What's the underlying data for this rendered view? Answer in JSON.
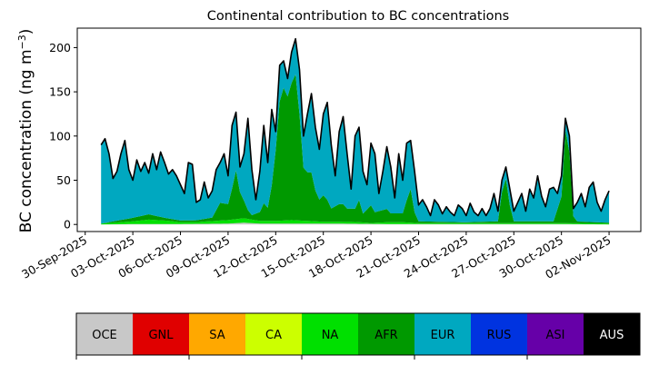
{
  "chart_data": {
    "type": "area",
    "stacked": true,
    "title": "Continental contribution to BC concentrations",
    "ylabel": "BC concentration (ng m",
    "ylabel_sup": "−3",
    "ylabel_close": ")",
    "xlabel": "",
    "ylim": [
      -8,
      222
    ],
    "xlim": [
      "2025-09-29T12:00",
      "2025-11-04T00:00"
    ],
    "yticks": [
      0,
      50,
      100,
      150,
      200
    ],
    "xticks": [
      "30-Sep-2025",
      "03-Oct-2025",
      "06-Oct-2025",
      "09-Oct-2025",
      "12-Oct-2025",
      "15-Oct-2025",
      "18-Oct-2025",
      "21-Oct-2025",
      "24-Oct-2025",
      "27-Oct-2025",
      "30-Oct-2025",
      "02-Nov-2025"
    ],
    "grid": false,
    "total_line_color": "#000000",
    "total_points": [
      [
        "2025-10-01T00:00",
        90
      ],
      [
        "2025-10-01T06:00",
        97
      ],
      [
        "2025-10-01T12:00",
        80
      ],
      [
        "2025-10-01T18:00",
        52
      ],
      [
        "2025-10-02T00:00",
        60
      ],
      [
        "2025-10-02T06:00",
        80
      ],
      [
        "2025-10-02T12:00",
        95
      ],
      [
        "2025-10-02T18:00",
        62
      ],
      [
        "2025-10-03T00:00",
        50
      ],
      [
        "2025-10-03T06:00",
        73
      ],
      [
        "2025-10-03T12:00",
        60
      ],
      [
        "2025-10-03T18:00",
        70
      ],
      [
        "2025-10-04T00:00",
        58
      ],
      [
        "2025-10-04T06:00",
        80
      ],
      [
        "2025-10-04T12:00",
        62
      ],
      [
        "2025-10-04T18:00",
        82
      ],
      [
        "2025-10-05T00:00",
        70
      ],
      [
        "2025-10-05T06:00",
        57
      ],
      [
        "2025-10-05T12:00",
        62
      ],
      [
        "2025-10-05T18:00",
        55
      ],
      [
        "2025-10-06T00:00",
        45
      ],
      [
        "2025-10-06T06:00",
        35
      ],
      [
        "2025-10-06T12:00",
        70
      ],
      [
        "2025-10-06T18:00",
        68
      ],
      [
        "2025-10-07T00:00",
        25
      ],
      [
        "2025-10-07T06:00",
        28
      ],
      [
        "2025-10-07T12:00",
        48
      ],
      [
        "2025-10-07T18:00",
        30
      ],
      [
        "2025-10-08T00:00",
        38
      ],
      [
        "2025-10-08T06:00",
        62
      ],
      [
        "2025-10-08T12:00",
        70
      ],
      [
        "2025-10-08T18:00",
        80
      ],
      [
        "2025-10-09T00:00",
        55
      ],
      [
        "2025-10-09T06:00",
        112
      ],
      [
        "2025-10-09T12:00",
        127
      ],
      [
        "2025-10-09T18:00",
        65
      ],
      [
        "2025-10-10T00:00",
        80
      ],
      [
        "2025-10-10T06:00",
        120
      ],
      [
        "2025-10-10T12:00",
        62
      ],
      [
        "2025-10-10T18:00",
        28
      ],
      [
        "2025-10-11T00:00",
        60
      ],
      [
        "2025-10-11T06:00",
        112
      ],
      [
        "2025-10-11T12:00",
        70
      ],
      [
        "2025-10-11T18:00",
        130
      ],
      [
        "2025-10-12T00:00",
        105
      ],
      [
        "2025-10-12T06:00",
        180
      ],
      [
        "2025-10-12T12:00",
        185
      ],
      [
        "2025-10-12T18:00",
        165
      ],
      [
        "2025-10-13T00:00",
        195
      ],
      [
        "2025-10-13T06:00",
        210
      ],
      [
        "2025-10-13T12:00",
        175
      ],
      [
        "2025-10-13T18:00",
        100
      ],
      [
        "2025-10-14T00:00",
        125
      ],
      [
        "2025-10-14T06:00",
        148
      ],
      [
        "2025-10-14T12:00",
        110
      ],
      [
        "2025-10-14T18:00",
        85
      ],
      [
        "2025-10-15T00:00",
        125
      ],
      [
        "2025-10-15T06:00",
        138
      ],
      [
        "2025-10-15T12:00",
        90
      ],
      [
        "2025-10-15T18:00",
        55
      ],
      [
        "2025-10-16T00:00",
        105
      ],
      [
        "2025-10-16T06:00",
        122
      ],
      [
        "2025-10-16T12:00",
        80
      ],
      [
        "2025-10-16T18:00",
        40
      ],
      [
        "2025-10-17T00:00",
        100
      ],
      [
        "2025-10-17T06:00",
        110
      ],
      [
        "2025-10-17T12:00",
        60
      ],
      [
        "2025-10-17T18:00",
        45
      ],
      [
        "2025-10-18T00:00",
        92
      ],
      [
        "2025-10-18T06:00",
        80
      ],
      [
        "2025-10-18T12:00",
        35
      ],
      [
        "2025-10-18T18:00",
        60
      ],
      [
        "2025-10-19T00:00",
        88
      ],
      [
        "2025-10-19T06:00",
        65
      ],
      [
        "2025-10-19T12:00",
        30
      ],
      [
        "2025-10-19T18:00",
        80
      ],
      [
        "2025-10-20T00:00",
        50
      ],
      [
        "2025-10-20T06:00",
        92
      ],
      [
        "2025-10-20T12:00",
        95
      ],
      [
        "2025-10-20T18:00",
        60
      ],
      [
        "2025-10-21T00:00",
        22
      ],
      [
        "2025-10-21T06:00",
        28
      ],
      [
        "2025-10-21T12:00",
        20
      ],
      [
        "2025-10-21T18:00",
        10
      ],
      [
        "2025-10-22T00:00",
        28
      ],
      [
        "2025-10-22T06:00",
        22
      ],
      [
        "2025-10-22T12:00",
        12
      ],
      [
        "2025-10-22T18:00",
        20
      ],
      [
        "2025-10-23T00:00",
        14
      ],
      [
        "2025-10-23T06:00",
        10
      ],
      [
        "2025-10-23T12:00",
        22
      ],
      [
        "2025-10-23T18:00",
        18
      ],
      [
        "2025-10-24T00:00",
        10
      ],
      [
        "2025-10-24T06:00",
        24
      ],
      [
        "2025-10-24T12:00",
        14
      ],
      [
        "2025-10-24T18:00",
        10
      ],
      [
        "2025-10-25T00:00",
        18
      ],
      [
        "2025-10-25T06:00",
        10
      ],
      [
        "2025-10-25T12:00",
        18
      ],
      [
        "2025-10-25T18:00",
        35
      ],
      [
        "2025-10-26T00:00",
        15
      ],
      [
        "2025-10-26T06:00",
        50
      ],
      [
        "2025-10-26T12:00",
        65
      ],
      [
        "2025-10-26T18:00",
        40
      ],
      [
        "2025-10-27T00:00",
        15
      ],
      [
        "2025-10-27T06:00",
        25
      ],
      [
        "2025-10-27T12:00",
        35
      ],
      [
        "2025-10-27T18:00",
        15
      ],
      [
        "2025-10-28T00:00",
        40
      ],
      [
        "2025-10-28T06:00",
        30
      ],
      [
        "2025-10-28T12:00",
        55
      ],
      [
        "2025-10-28T18:00",
        32
      ],
      [
        "2025-10-29T00:00",
        20
      ],
      [
        "2025-10-29T06:00",
        40
      ],
      [
        "2025-10-29T12:00",
        42
      ],
      [
        "2025-10-29T18:00",
        35
      ],
      [
        "2025-10-30T00:00",
        55
      ],
      [
        "2025-10-30T06:00",
        120
      ],
      [
        "2025-10-30T12:00",
        100
      ],
      [
        "2025-10-30T18:00",
        18
      ],
      [
        "2025-10-31T00:00",
        25
      ],
      [
        "2025-10-31T06:00",
        35
      ],
      [
        "2025-10-31T12:00",
        20
      ],
      [
        "2025-10-31T18:00",
        42
      ],
      [
        "2025-11-01T00:00",
        48
      ],
      [
        "2025-11-01T06:00",
        25
      ],
      [
        "2025-11-01T12:00",
        15
      ],
      [
        "2025-11-01T18:00",
        28
      ],
      [
        "2025-11-02T00:00",
        38
      ]
    ],
    "series": [
      {
        "name": "OCE",
        "color": "#c8c8c8",
        "values": [
          [
            "2025-10-01T00:00",
            0
          ],
          [
            "2025-10-03T00:00",
            0.5
          ],
          [
            "2025-10-06T00:00",
            0.5
          ],
          [
            "2025-10-09T00:00",
            1
          ],
          [
            "2025-10-10T00:00",
            2
          ],
          [
            "2025-10-11T00:00",
            1
          ],
          [
            "2025-10-13T00:00",
            1
          ],
          [
            "2025-10-16T00:00",
            1
          ],
          [
            "2025-10-19T00:00",
            0.5
          ],
          [
            "2025-10-22T00:00",
            0.5
          ],
          [
            "2025-10-26T00:00",
            0.5
          ],
          [
            "2025-10-30T00:00",
            0.5
          ],
          [
            "2025-11-02T00:00",
            0
          ]
        ]
      },
      {
        "name": "NA",
        "color": "#00e000",
        "values": [
          [
            "2025-10-01T00:00",
            1
          ],
          [
            "2025-10-02T00:00",
            2
          ],
          [
            "2025-10-03T00:00",
            3
          ],
          [
            "2025-10-04T00:00",
            5
          ],
          [
            "2025-10-05T00:00",
            4
          ],
          [
            "2025-10-06T00:00",
            2
          ],
          [
            "2025-10-07T00:00",
            2
          ],
          [
            "2025-10-08T00:00",
            3
          ],
          [
            "2025-10-09T00:00",
            4
          ],
          [
            "2025-10-10T00:00",
            5
          ],
          [
            "2025-10-11T00:00",
            3
          ],
          [
            "2025-10-12T00:00",
            3
          ],
          [
            "2025-10-13T00:00",
            4
          ],
          [
            "2025-10-14T00:00",
            3
          ],
          [
            "2025-10-15T00:00",
            2
          ],
          [
            "2025-10-16T00:00",
            2
          ],
          [
            "2025-10-17T00:00",
            2
          ],
          [
            "2025-10-18T00:00",
            1
          ],
          [
            "2025-10-19T00:00",
            2
          ],
          [
            "2025-10-20T00:00",
            2
          ],
          [
            "2025-10-21T00:00",
            1
          ],
          [
            "2025-10-24T00:00",
            1
          ],
          [
            "2025-10-27T00:00",
            1
          ],
          [
            "2025-10-30T00:00",
            1
          ],
          [
            "2025-11-02T00:00",
            1
          ]
        ]
      },
      {
        "name": "AFR",
        "color": "#009900",
        "values": [
          [
            "2025-10-01T00:00",
            0
          ],
          [
            "2025-10-02T00:00",
            2
          ],
          [
            "2025-10-03T00:00",
            4
          ],
          [
            "2025-10-04T00:00",
            6
          ],
          [
            "2025-10-05T00:00",
            3
          ],
          [
            "2025-10-06T00:00",
            2
          ],
          [
            "2025-10-07T00:00",
            2
          ],
          [
            "2025-10-08T00:00",
            4
          ],
          [
            "2025-10-08T12:00",
            20
          ],
          [
            "2025-10-09T00:00",
            18
          ],
          [
            "2025-10-09T06:00",
            35
          ],
          [
            "2025-10-09T12:00",
            55
          ],
          [
            "2025-10-09T18:00",
            30
          ],
          [
            "2025-10-10T00:00",
            20
          ],
          [
            "2025-10-10T06:00",
            10
          ],
          [
            "2025-10-10T12:00",
            5
          ],
          [
            "2025-10-11T00:00",
            10
          ],
          [
            "2025-10-11T06:00",
            20
          ],
          [
            "2025-10-11T12:00",
            15
          ],
          [
            "2025-10-11T18:00",
            40
          ],
          [
            "2025-10-12T00:00",
            80
          ],
          [
            "2025-10-12T06:00",
            135
          ],
          [
            "2025-10-12T12:00",
            150
          ],
          [
            "2025-10-12T18:00",
            140
          ],
          [
            "2025-10-13T00:00",
            155
          ],
          [
            "2025-10-13T06:00",
            165
          ],
          [
            "2025-10-13T12:00",
            120
          ],
          [
            "2025-10-13T18:00",
            60
          ],
          [
            "2025-10-14T00:00",
            55
          ],
          [
            "2025-10-14T06:00",
            55
          ],
          [
            "2025-10-14T12:00",
            35
          ],
          [
            "2025-10-14T18:00",
            25
          ],
          [
            "2025-10-15T00:00",
            30
          ],
          [
            "2025-10-15T06:00",
            25
          ],
          [
            "2025-10-15T12:00",
            15
          ],
          [
            "2025-10-16T00:00",
            20
          ],
          [
            "2025-10-16T06:00",
            20
          ],
          [
            "2025-10-16T12:00",
            15
          ],
          [
            "2025-10-17T00:00",
            15
          ],
          [
            "2025-10-17T06:00",
            25
          ],
          [
            "2025-10-17T12:00",
            10
          ],
          [
            "2025-10-18T00:00",
            20
          ],
          [
            "2025-10-18T06:00",
            12
          ],
          [
            "2025-10-19T00:00",
            15
          ],
          [
            "2025-10-19T06:00",
            10
          ],
          [
            "2025-10-20T00:00",
            10
          ],
          [
            "2025-10-20T06:00",
            25
          ],
          [
            "2025-10-20T12:00",
            38
          ],
          [
            "2025-10-20T18:00",
            12
          ],
          [
            "2025-10-21T00:00",
            2
          ],
          [
            "2025-10-24T00:00",
            1
          ],
          [
            "2025-10-26T00:00",
            2
          ],
          [
            "2025-10-26T06:00",
            35
          ],
          [
            "2025-10-26T12:00",
            50
          ],
          [
            "2025-10-26T18:00",
            20
          ],
          [
            "2025-10-27T00:00",
            2
          ],
          [
            "2025-10-29T12:00",
            2
          ],
          [
            "2025-10-30T00:00",
            30
          ],
          [
            "2025-10-30T06:00",
            105
          ],
          [
            "2025-10-30T12:00",
            80
          ],
          [
            "2025-10-30T18:00",
            8
          ],
          [
            "2025-10-31T00:00",
            2
          ],
          [
            "2025-11-02T00:00",
            1
          ]
        ]
      },
      {
        "name": "EUR",
        "color": "#00a8c0",
        "values": "remainder"
      }
    ]
  },
  "colorbar": {
    "labels": [
      "OCE",
      "GNL",
      "SA",
      "CA",
      "NA",
      "AFR",
      "EUR",
      "RUS",
      "ASI",
      "AUS"
    ],
    "colors": [
      "#c8c8c8",
      "#e00000",
      "#ffa800",
      "#ccff00",
      "#00e000",
      "#009900",
      "#00a8c0",
      "#0033e0",
      "#6600a8",
      "#000000"
    ],
    "text_colors": [
      "#000000",
      "#000000",
      "#000000",
      "#000000",
      "#000000",
      "#000000",
      "#000000",
      "#000000",
      "#000000",
      "#ffffff"
    ]
  }
}
